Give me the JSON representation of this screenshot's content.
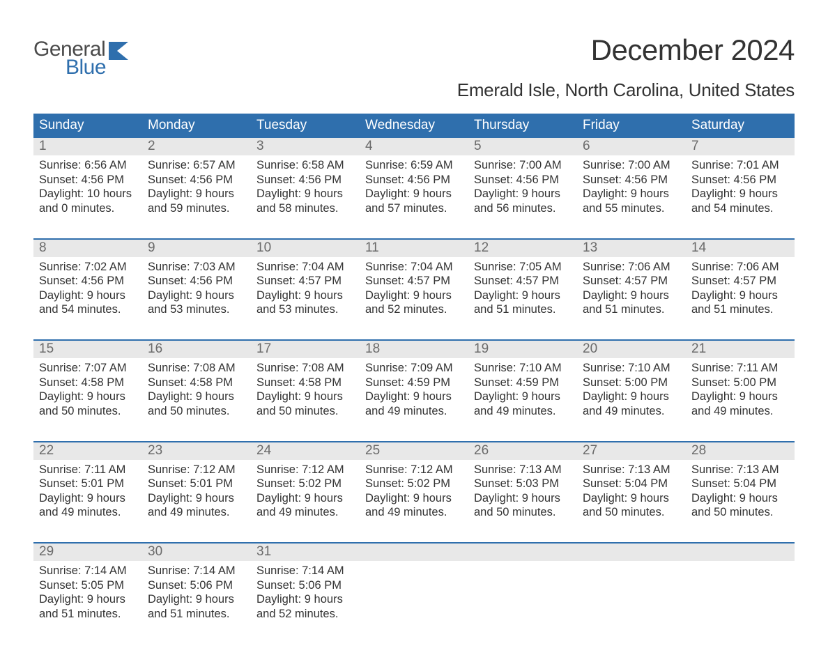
{
  "brand": {
    "word1": "General",
    "word2": "Blue",
    "flag_color": "#2f6fad"
  },
  "title": "December 2024",
  "location": "Emerald Isle, North Carolina, United States",
  "colors": {
    "header_bg": "#2f6fad",
    "header_text": "#ffffff",
    "daynum_bg": "#e8e8e8",
    "daynum_text": "#6a6a6a",
    "body_text": "#333333",
    "week_border": "#2f6fad",
    "background": "#ffffff"
  },
  "day_labels": [
    "Sunday",
    "Monday",
    "Tuesday",
    "Wednesday",
    "Thursday",
    "Friday",
    "Saturday"
  ],
  "weeks": [
    [
      {
        "n": "1",
        "sunrise": "Sunrise: 6:56 AM",
        "sunset": "Sunset: 4:56 PM",
        "d1": "Daylight: 10 hours",
        "d2": "and 0 minutes."
      },
      {
        "n": "2",
        "sunrise": "Sunrise: 6:57 AM",
        "sunset": "Sunset: 4:56 PM",
        "d1": "Daylight: 9 hours",
        "d2": "and 59 minutes."
      },
      {
        "n": "3",
        "sunrise": "Sunrise: 6:58 AM",
        "sunset": "Sunset: 4:56 PM",
        "d1": "Daylight: 9 hours",
        "d2": "and 58 minutes."
      },
      {
        "n": "4",
        "sunrise": "Sunrise: 6:59 AM",
        "sunset": "Sunset: 4:56 PM",
        "d1": "Daylight: 9 hours",
        "d2": "and 57 minutes."
      },
      {
        "n": "5",
        "sunrise": "Sunrise: 7:00 AM",
        "sunset": "Sunset: 4:56 PM",
        "d1": "Daylight: 9 hours",
        "d2": "and 56 minutes."
      },
      {
        "n": "6",
        "sunrise": "Sunrise: 7:00 AM",
        "sunset": "Sunset: 4:56 PM",
        "d1": "Daylight: 9 hours",
        "d2": "and 55 minutes."
      },
      {
        "n": "7",
        "sunrise": "Sunrise: 7:01 AM",
        "sunset": "Sunset: 4:56 PM",
        "d1": "Daylight: 9 hours",
        "d2": "and 54 minutes."
      }
    ],
    [
      {
        "n": "8",
        "sunrise": "Sunrise: 7:02 AM",
        "sunset": "Sunset: 4:56 PM",
        "d1": "Daylight: 9 hours",
        "d2": "and 54 minutes."
      },
      {
        "n": "9",
        "sunrise": "Sunrise: 7:03 AM",
        "sunset": "Sunset: 4:56 PM",
        "d1": "Daylight: 9 hours",
        "d2": "and 53 minutes."
      },
      {
        "n": "10",
        "sunrise": "Sunrise: 7:04 AM",
        "sunset": "Sunset: 4:57 PM",
        "d1": "Daylight: 9 hours",
        "d2": "and 53 minutes."
      },
      {
        "n": "11",
        "sunrise": "Sunrise: 7:04 AM",
        "sunset": "Sunset: 4:57 PM",
        "d1": "Daylight: 9 hours",
        "d2": "and 52 minutes."
      },
      {
        "n": "12",
        "sunrise": "Sunrise: 7:05 AM",
        "sunset": "Sunset: 4:57 PM",
        "d1": "Daylight: 9 hours",
        "d2": "and 51 minutes."
      },
      {
        "n": "13",
        "sunrise": "Sunrise: 7:06 AM",
        "sunset": "Sunset: 4:57 PM",
        "d1": "Daylight: 9 hours",
        "d2": "and 51 minutes."
      },
      {
        "n": "14",
        "sunrise": "Sunrise: 7:06 AM",
        "sunset": "Sunset: 4:57 PM",
        "d1": "Daylight: 9 hours",
        "d2": "and 51 minutes."
      }
    ],
    [
      {
        "n": "15",
        "sunrise": "Sunrise: 7:07 AM",
        "sunset": "Sunset: 4:58 PM",
        "d1": "Daylight: 9 hours",
        "d2": "and 50 minutes."
      },
      {
        "n": "16",
        "sunrise": "Sunrise: 7:08 AM",
        "sunset": "Sunset: 4:58 PM",
        "d1": "Daylight: 9 hours",
        "d2": "and 50 minutes."
      },
      {
        "n": "17",
        "sunrise": "Sunrise: 7:08 AM",
        "sunset": "Sunset: 4:58 PM",
        "d1": "Daylight: 9 hours",
        "d2": "and 50 minutes."
      },
      {
        "n": "18",
        "sunrise": "Sunrise: 7:09 AM",
        "sunset": "Sunset: 4:59 PM",
        "d1": "Daylight: 9 hours",
        "d2": "and 49 minutes."
      },
      {
        "n": "19",
        "sunrise": "Sunrise: 7:10 AM",
        "sunset": "Sunset: 4:59 PM",
        "d1": "Daylight: 9 hours",
        "d2": "and 49 minutes."
      },
      {
        "n": "20",
        "sunrise": "Sunrise: 7:10 AM",
        "sunset": "Sunset: 5:00 PM",
        "d1": "Daylight: 9 hours",
        "d2": "and 49 minutes."
      },
      {
        "n": "21",
        "sunrise": "Sunrise: 7:11 AM",
        "sunset": "Sunset: 5:00 PM",
        "d1": "Daylight: 9 hours",
        "d2": "and 49 minutes."
      }
    ],
    [
      {
        "n": "22",
        "sunrise": "Sunrise: 7:11 AM",
        "sunset": "Sunset: 5:01 PM",
        "d1": "Daylight: 9 hours",
        "d2": "and 49 minutes."
      },
      {
        "n": "23",
        "sunrise": "Sunrise: 7:12 AM",
        "sunset": "Sunset: 5:01 PM",
        "d1": "Daylight: 9 hours",
        "d2": "and 49 minutes."
      },
      {
        "n": "24",
        "sunrise": "Sunrise: 7:12 AM",
        "sunset": "Sunset: 5:02 PM",
        "d1": "Daylight: 9 hours",
        "d2": "and 49 minutes."
      },
      {
        "n": "25",
        "sunrise": "Sunrise: 7:12 AM",
        "sunset": "Sunset: 5:02 PM",
        "d1": "Daylight: 9 hours",
        "d2": "and 49 minutes."
      },
      {
        "n": "26",
        "sunrise": "Sunrise: 7:13 AM",
        "sunset": "Sunset: 5:03 PM",
        "d1": "Daylight: 9 hours",
        "d2": "and 50 minutes."
      },
      {
        "n": "27",
        "sunrise": "Sunrise: 7:13 AM",
        "sunset": "Sunset: 5:04 PM",
        "d1": "Daylight: 9 hours",
        "d2": "and 50 minutes."
      },
      {
        "n": "28",
        "sunrise": "Sunrise: 7:13 AM",
        "sunset": "Sunset: 5:04 PM",
        "d1": "Daylight: 9 hours",
        "d2": "and 50 minutes."
      }
    ],
    [
      {
        "n": "29",
        "sunrise": "Sunrise: 7:14 AM",
        "sunset": "Sunset: 5:05 PM",
        "d1": "Daylight: 9 hours",
        "d2": "and 51 minutes."
      },
      {
        "n": "30",
        "sunrise": "Sunrise: 7:14 AM",
        "sunset": "Sunset: 5:06 PM",
        "d1": "Daylight: 9 hours",
        "d2": "and 51 minutes."
      },
      {
        "n": "31",
        "sunrise": "Sunrise: 7:14 AM",
        "sunset": "Sunset: 5:06 PM",
        "d1": "Daylight: 9 hours",
        "d2": "and 52 minutes."
      },
      null,
      null,
      null,
      null
    ]
  ]
}
